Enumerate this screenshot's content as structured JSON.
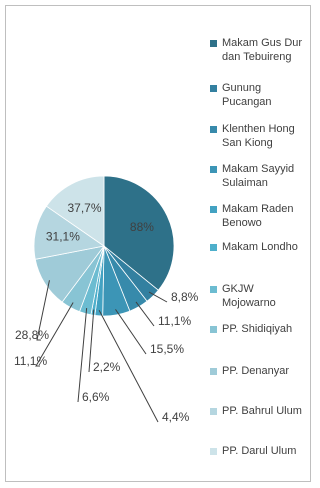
{
  "chart_data": {
    "type": "pie",
    "categories": [
      "Makam Gus Dur dan Tebuireng",
      "Gunung Pucangan",
      "Klenthen Hong San Kiong",
      "Makam Sayyid Sulaiman",
      "Makam Raden Benowo",
      "Makam Londho",
      "GKJW Mojowarno",
      "PP. Shidiqiyah",
      "PP. Denanyar",
      "PP. Bahrul Ulum",
      "PP. Darul Ulum"
    ],
    "values": [
      88,
      8.8,
      11.1,
      15.5,
      4.4,
      2.2,
      6.6,
      11.1,
      28.8,
      31.1,
      37.7
    ],
    "value_labels": [
      "88%",
      "8,8%",
      "11,1%",
      "15,5%",
      "4,4%",
      "2,2%",
      "6,6%",
      "11,1%",
      "28,8%",
      "31,1%",
      "37,7%"
    ],
    "colors": [
      "#2e7189",
      "#3380a0",
      "#378aab",
      "#3c95b6",
      "#43a2c2",
      "#4eafcb",
      "#6cbcd1",
      "#88c4d4",
      "#9fcbd8",
      "#b5d6e0",
      "#cde3e9"
    ]
  }
}
